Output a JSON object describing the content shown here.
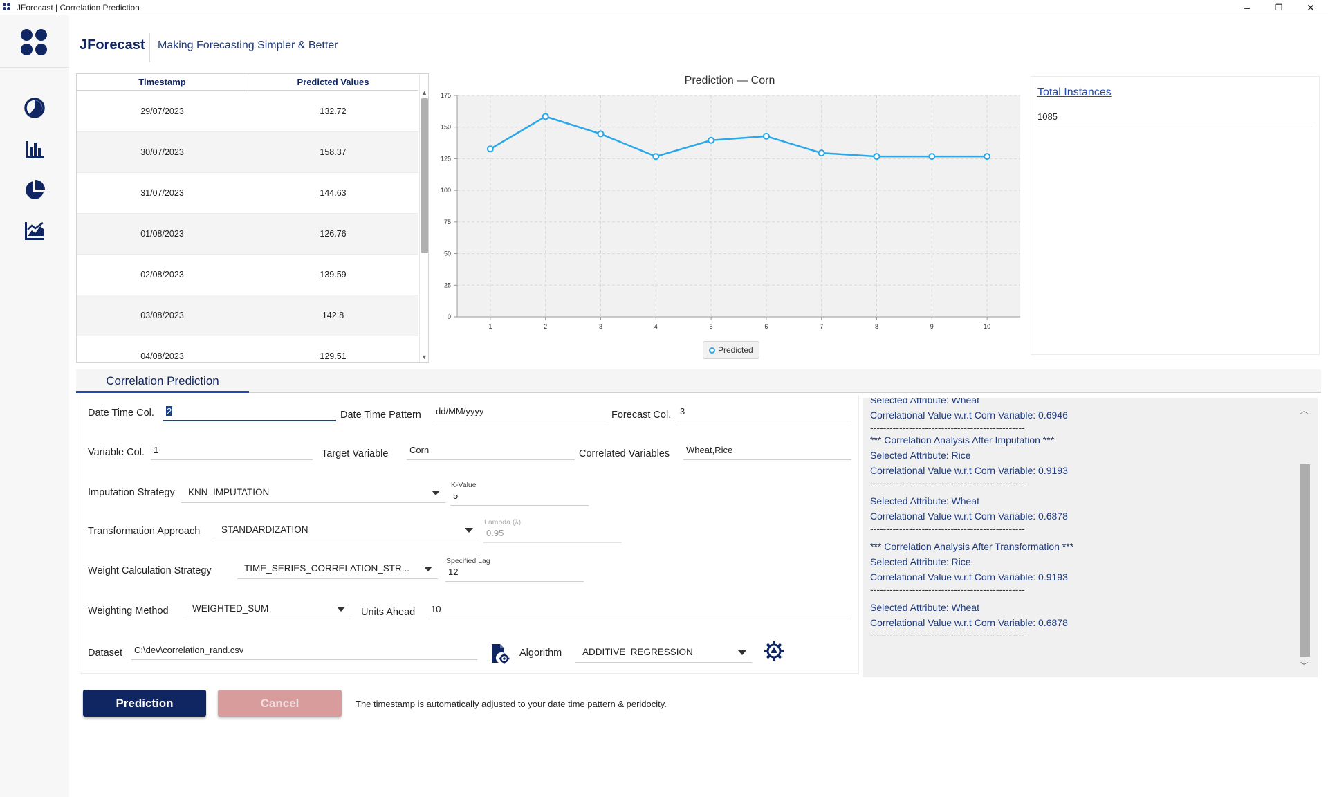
{
  "window": {
    "title": "JForecast | Correlation Prediction",
    "controls": {
      "minimize": "–",
      "maximize": "❐",
      "close": "✕"
    }
  },
  "sidebar": {
    "items": [
      {
        "icon": "pie-chart-icon"
      },
      {
        "icon": "bar-chart-icon"
      },
      {
        "icon": "pie-segment-icon"
      },
      {
        "icon": "area-chart-icon"
      }
    ]
  },
  "header": {
    "brand": "JForecast",
    "tagline": "Making Forecasting Simpler & Better"
  },
  "table": {
    "columns": [
      "Timestamp",
      "Predicted Values"
    ],
    "rows": [
      [
        "29/07/2023",
        "132.72"
      ],
      [
        "30/07/2023",
        "158.37"
      ],
      [
        "31/07/2023",
        "144.63"
      ],
      [
        "01/08/2023",
        "126.76"
      ],
      [
        "02/08/2023",
        "139.59"
      ],
      [
        "03/08/2023",
        "142.8"
      ],
      [
        "04/08/2023",
        "129.51"
      ]
    ]
  },
  "chart_data": {
    "type": "line",
    "title": "Prediction  — Corn",
    "x": [
      1,
      2,
      3,
      4,
      5,
      6,
      7,
      8,
      9,
      10
    ],
    "series": [
      {
        "name": "Predicted",
        "values": [
          132.72,
          158.37,
          144.63,
          126.76,
          139.59,
          142.8,
          129.51,
          126.8,
          126.8,
          126.8
        ]
      }
    ],
    "yticks": [
      0,
      25,
      50,
      75,
      100,
      125,
      150,
      175
    ],
    "ylim": [
      0,
      175
    ],
    "xlim": [
      0.4,
      10.6
    ],
    "grid": true,
    "legend": "bottom-center",
    "color": "#29a7e8"
  },
  "stats": {
    "title": "Total Instances",
    "value": "1085"
  },
  "tabs": [
    {
      "label": "Correlation Prediction"
    }
  ],
  "form": {
    "datetime_col_label": "Date Time Col.",
    "datetime_col_value": "2",
    "datetime_pattern_label": "Date Time Pattern",
    "datetime_pattern_value": "dd/MM/yyyy",
    "forecast_col_label": "Forecast Col.",
    "forecast_col_value": "3",
    "variable_col_label": "Variable Col.",
    "variable_col_value": "1",
    "target_variable_label": "Target Variable",
    "target_variable_value": "Corn",
    "correlated_label": "Correlated Variables",
    "correlated_value": "Wheat,Rice",
    "imputation_label": "Imputation Strategy",
    "imputation_value": "KNN_IMPUTATION",
    "kvalue_caption": "K-Value",
    "kvalue_value": "5",
    "transformation_label": "Transformation Approach",
    "transformation_value": "STANDARDIZATION",
    "lambda_caption": "Lambda (λ)",
    "lambda_value": "0.95",
    "weight_strategy_label": "Weight Calculation Strategy",
    "weight_strategy_value": "TIME_SERIES_CORRELATION_STR...",
    "lag_caption": "Specified Lag",
    "lag_value": "12",
    "weighting_label": "Weighting Method",
    "weighting_value": "WEIGHTED_SUM",
    "units_label": "Units Ahead",
    "units_value": "10",
    "dataset_label": "Dataset",
    "dataset_value": "C:\\dev\\correlation_rand.csv",
    "algorithm_label": "Algorithm",
    "algorithm_value": "ADDITIVE_REGRESSION"
  },
  "log": {
    "lines": [
      "Selected Attribute: Wheat",
      "Correlational Value w.r.t Corn Variable: 0.6946",
      "------------------------------------------------",
      "*** Correlation Analysis After Imputation ***",
      "Selected Attribute: Rice",
      "Correlational Value w.r.t Corn Variable: 0.9193",
      "------------------------------------------------",
      "Selected Attribute: Wheat",
      "Correlational Value w.r.t Corn Variable: 0.6878",
      "------------------------------------------------",
      "*** Correlation Analysis After Transformation ***",
      "Selected Attribute: Rice",
      "Correlational Value w.r.t Corn Variable: 0.9193",
      "------------------------------------------------",
      "Selected Attribute: Wheat",
      "Correlational Value w.r.t Corn Variable: 0.6878",
      "------------------------------------------------"
    ]
  },
  "actions": {
    "prediction": "Prediction",
    "cancel": "Cancel",
    "hint": "The timestamp is automatically adjusted to your date time pattern & peridocity."
  },
  "colors": {
    "brand": "#0f2663",
    "accent": "#29a7e8",
    "link": "#1f4bb3",
    "cancel_disabled": "#d89c9c"
  }
}
